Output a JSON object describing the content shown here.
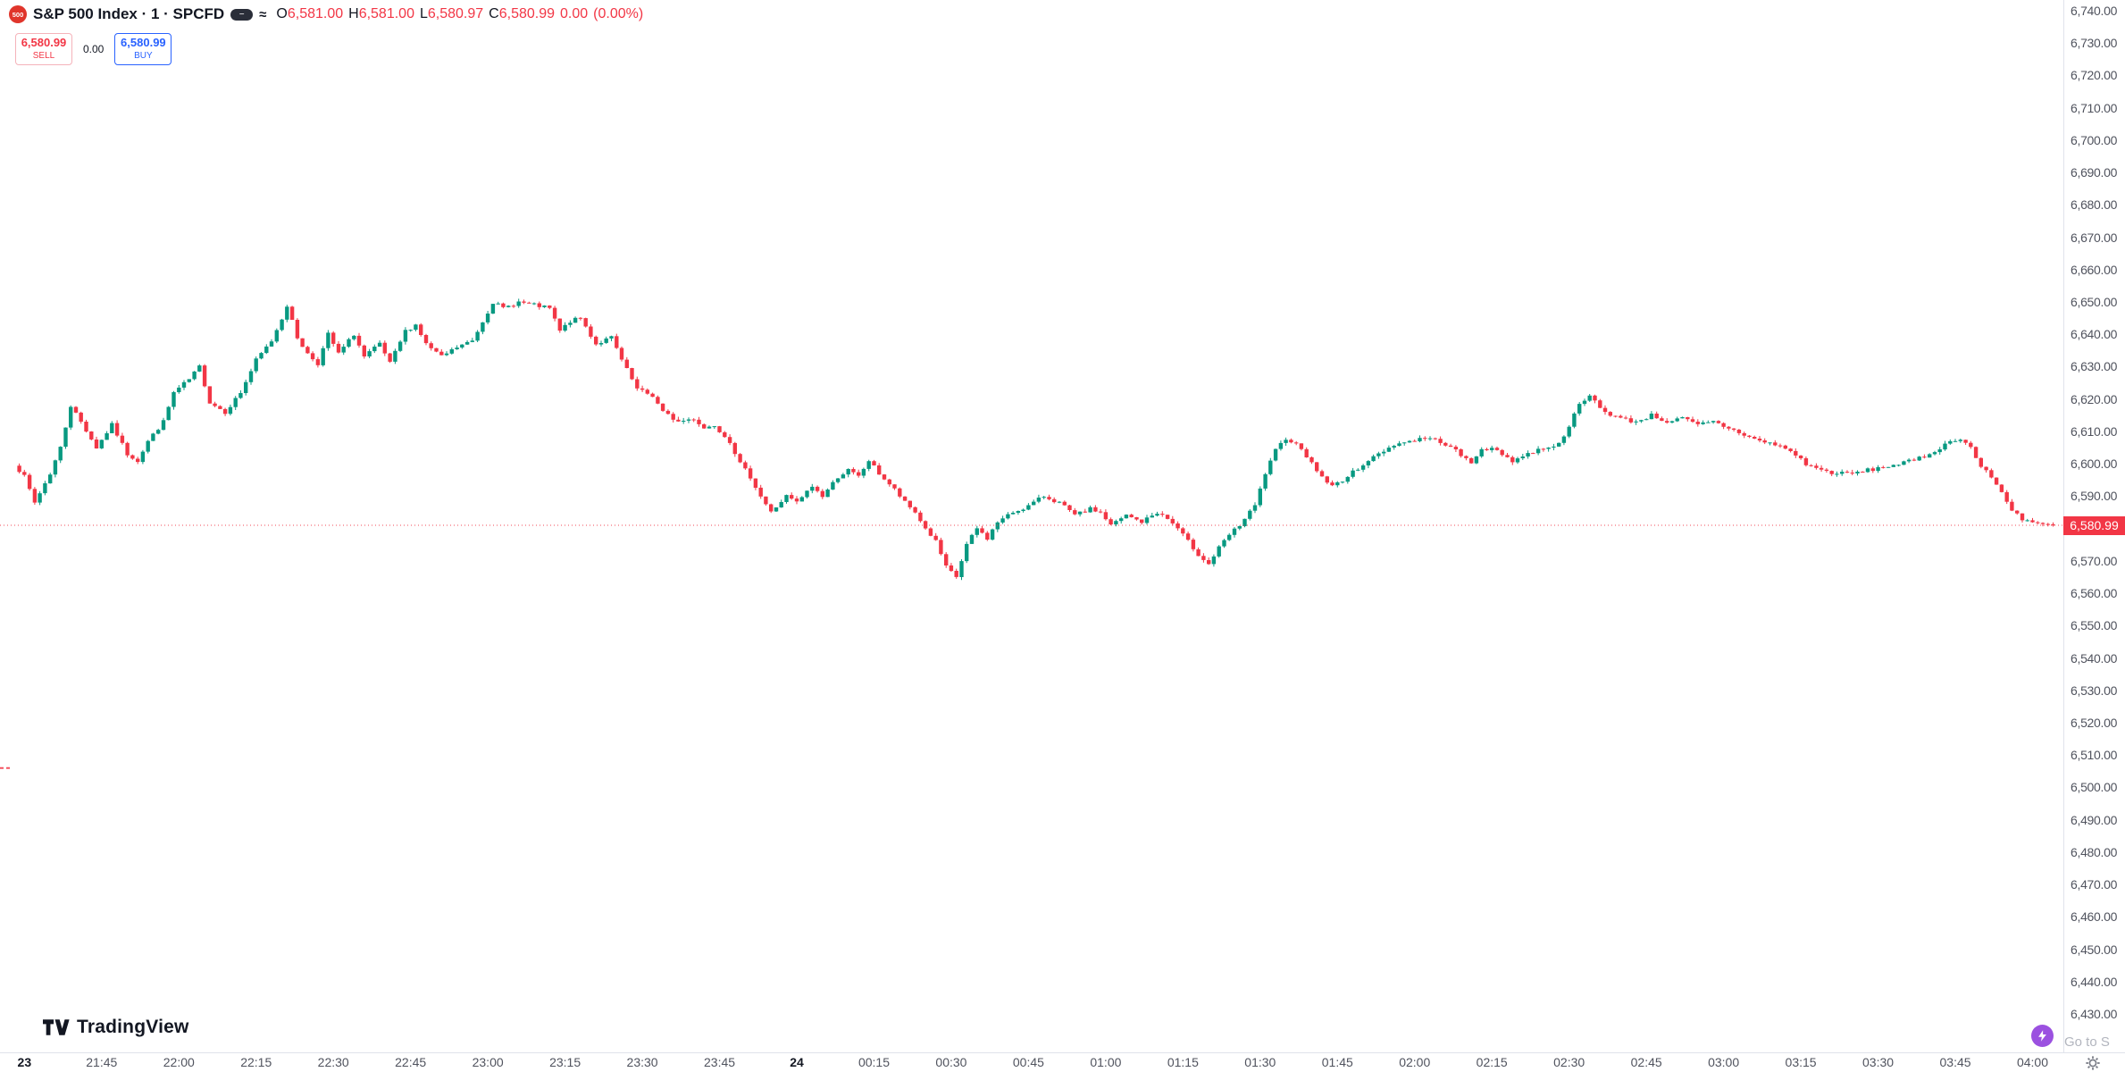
{
  "theme": {
    "up": "#089981",
    "down": "#F23645",
    "buy": "#2962FF",
    "sell": "#F23645",
    "axis_text": "#50535e",
    "logo_red": "#e0352b",
    "lightning_purple": "#9b51e0",
    "muted_text": "#b2b5be",
    "separator": "#e0e3eb"
  },
  "header": {
    "logo_text": "500",
    "title": "S&P 500 Index · 1 · SPCFD",
    "pill_icon_glyph": "−",
    "approx_icon_glyph": "≈",
    "ohlc": {
      "o_label": "O",
      "o_value": "6,581.00",
      "h_label": "H",
      "h_value": "6,581.00",
      "l_label": "L",
      "l_value": "6,580.97",
      "c_label": "C",
      "c_value": "6,580.99",
      "change": "0.00",
      "change_pct": "(0.00%)"
    }
  },
  "trade_panel": {
    "sell_price": "6,580.99",
    "sell_label": "SELL",
    "spread": "0.00",
    "buy_price": "6,580.99",
    "buy_label": "BUY"
  },
  "footer": {
    "brand": "TradingView",
    "goto_hint": "Go to S"
  },
  "chart_data": {
    "type": "candlestick",
    "title": "S&P 500 Index",
    "interval": "1",
    "exchange": "SPCFD",
    "up_color": "#089981",
    "down_color": "#F23645",
    "open": 6581.0,
    "high": 6581.0,
    "low": 6580.97,
    "close": 6580.99,
    "current_price": 6580.99,
    "current_price_label": "6,580.99",
    "left_edge_mark_price": 6506,
    "price_axis": {
      "min": 6430,
      "max": 6740,
      "step": 10,
      "tick_labels": [
        "6,740.00",
        "6,730.00",
        "6,720.00",
        "6,710.00",
        "6,700.00",
        "6,690.00",
        "6,680.00",
        "6,670.00",
        "6,660.00",
        "6,650.00",
        "6,640.00",
        "6,630.00",
        "6,620.00",
        "6,610.00",
        "6,600.00",
        "6,590.00",
        "6,580.00",
        "6,570.00",
        "6,560.00",
        "6,550.00",
        "6,540.00",
        "6,530.00",
        "6,520.00",
        "6,510.00",
        "6,500.00",
        "6,490.00",
        "6,480.00",
        "6,470.00",
        "6,460.00",
        "6,450.00",
        "6,440.00",
        "6,430.00"
      ]
    },
    "time_axis": {
      "start_time": "21:29",
      "end_time": "04:05",
      "labels": [
        {
          "t": 1,
          "label": "23",
          "bold": true
        },
        {
          "t": 16,
          "label": "21:45",
          "bold": false
        },
        {
          "t": 31,
          "label": "22:00",
          "bold": false
        },
        {
          "t": 46,
          "label": "22:15",
          "bold": false
        },
        {
          "t": 61,
          "label": "22:30",
          "bold": false
        },
        {
          "t": 76,
          "label": "22:45",
          "bold": false
        },
        {
          "t": 91,
          "label": "23:00",
          "bold": false
        },
        {
          "t": 106,
          "label": "23:15",
          "bold": false
        },
        {
          "t": 121,
          "label": "23:30",
          "bold": false
        },
        {
          "t": 136,
          "label": "23:45",
          "bold": false
        },
        {
          "t": 151,
          "label": "24",
          "bold": true
        },
        {
          "t": 166,
          "label": "00:15",
          "bold": false
        },
        {
          "t": 181,
          "label": "00:30",
          "bold": false
        },
        {
          "t": 196,
          "label": "00:45",
          "bold": false
        },
        {
          "t": 211,
          "label": "01:00",
          "bold": false
        },
        {
          "t": 226,
          "label": "01:15",
          "bold": false
        },
        {
          "t": 241,
          "label": "01:30",
          "bold": false
        },
        {
          "t": 256,
          "label": "01:45",
          "bold": false
        },
        {
          "t": 271,
          "label": "02:00",
          "bold": false
        },
        {
          "t": 286,
          "label": "02:15",
          "bold": false
        },
        {
          "t": 301,
          "label": "02:30",
          "bold": false
        },
        {
          "t": 316,
          "label": "02:45",
          "bold": false
        },
        {
          "t": 331,
          "label": "03:00",
          "bold": false
        },
        {
          "t": 346,
          "label": "03:15",
          "bold": false
        },
        {
          "t": 361,
          "label": "03:30",
          "bold": false
        },
        {
          "t": 376,
          "label": "03:45",
          "bold": false
        },
        {
          "t": 391,
          "label": "04:00",
          "bold": false
        }
      ]
    },
    "price_path_anchors": [
      [
        0,
        6600
      ],
      [
        2,
        6596
      ],
      [
        4,
        6588
      ],
      [
        7,
        6597
      ],
      [
        9,
        6605
      ],
      [
        11,
        6618
      ],
      [
        13,
        6613
      ],
      [
        16,
        6605
      ],
      [
        19,
        6612
      ],
      [
        22,
        6603
      ],
      [
        24,
        6601
      ],
      [
        26,
        6607
      ],
      [
        29,
        6613
      ],
      [
        31,
        6622
      ],
      [
        34,
        6626
      ],
      [
        36,
        6630
      ],
      [
        38,
        6619
      ],
      [
        41,
        6616
      ],
      [
        44,
        6622
      ],
      [
        47,
        6632
      ],
      [
        50,
        6638
      ],
      [
        52,
        6645
      ],
      [
        53,
        6649
      ],
      [
        55,
        6639
      ],
      [
        57,
        6634
      ],
      [
        59,
        6631
      ],
      [
        61,
        6640
      ],
      [
        63,
        6634
      ],
      [
        66,
        6640
      ],
      [
        68,
        6633
      ],
      [
        71,
        6637
      ],
      [
        73,
        6631
      ],
      [
        76,
        6641
      ],
      [
        78,
        6643
      ],
      [
        80,
        6637
      ],
      [
        83,
        6633
      ],
      [
        86,
        6636
      ],
      [
        89,
        6638
      ],
      [
        91,
        6644
      ],
      [
        93,
        6650
      ],
      [
        95,
        6648
      ],
      [
        98,
        6650
      ],
      [
        101,
        6649
      ],
      [
        104,
        6648
      ],
      [
        106,
        6641
      ],
      [
        108,
        6644
      ],
      [
        110,
        6645
      ],
      [
        113,
        6637
      ],
      [
        116,
        6639
      ],
      [
        118,
        6632
      ],
      [
        121,
        6623
      ],
      [
        124,
        6621
      ],
      [
        126,
        6616
      ],
      [
        129,
        6613
      ],
      [
        132,
        6614
      ],
      [
        134,
        6611
      ],
      [
        136,
        6612
      ],
      [
        139,
        6607
      ],
      [
        141,
        6600
      ],
      [
        143,
        6596
      ],
      [
        145,
        6590
      ],
      [
        147,
        6585
      ],
      [
        150,
        6590
      ],
      [
        152,
        6588
      ],
      [
        155,
        6593
      ],
      [
        157,
        6590
      ],
      [
        160,
        6596
      ],
      [
        162,
        6598
      ],
      [
        164,
        6596
      ],
      [
        166,
        6601
      ],
      [
        168,
        6597
      ],
      [
        171,
        6592
      ],
      [
        173,
        6588
      ],
      [
        175,
        6585
      ],
      [
        177,
        6580
      ],
      [
        179,
        6576
      ],
      [
        181,
        6568
      ],
      [
        183,
        6565
      ],
      [
        185,
        6575
      ],
      [
        187,
        6580
      ],
      [
        189,
        6577
      ],
      [
        191,
        6582
      ],
      [
        194,
        6585
      ],
      [
        197,
        6587
      ],
      [
        200,
        6590
      ],
      [
        203,
        6588
      ],
      [
        206,
        6584
      ],
      [
        209,
        6586
      ],
      [
        211,
        6585
      ],
      [
        213,
        6581
      ],
      [
        216,
        6584
      ],
      [
        219,
        6582
      ],
      [
        222,
        6585
      ],
      [
        224,
        6583
      ],
      [
        226,
        6580
      ],
      [
        228,
        6576
      ],
      [
        230,
        6572
      ],
      [
        232,
        6569
      ],
      [
        234,
        6574
      ],
      [
        236,
        6578
      ],
      [
        238,
        6581
      ],
      [
        241,
        6587
      ],
      [
        243,
        6597
      ],
      [
        245,
        6604
      ],
      [
        247,
        6608
      ],
      [
        250,
        6605
      ],
      [
        252,
        6600
      ],
      [
        254,
        6596
      ],
      [
        256,
        6593
      ],
      [
        259,
        6596
      ],
      [
        262,
        6600
      ],
      [
        265,
        6603
      ],
      [
        268,
        6606
      ],
      [
        271,
        6607
      ],
      [
        274,
        6608
      ],
      [
        277,
        6607
      ],
      [
        280,
        6604
      ],
      [
        283,
        6600
      ],
      [
        285,
        6605
      ],
      [
        288,
        6604
      ],
      [
        291,
        6601
      ],
      [
        294,
        6603
      ],
      [
        297,
        6605
      ],
      [
        300,
        6606
      ],
      [
        302,
        6612
      ],
      [
        304,
        6618
      ],
      [
        306,
        6621
      ],
      [
        309,
        6616
      ],
      [
        312,
        6614
      ],
      [
        315,
        6613
      ],
      [
        318,
        6615
      ],
      [
        321,
        6613
      ],
      [
        324,
        6614
      ],
      [
        327,
        6612
      ],
      [
        330,
        6613
      ],
      [
        333,
        6611
      ],
      [
        336,
        6609
      ],
      [
        339,
        6607
      ],
      [
        342,
        6606
      ],
      [
        345,
        6604
      ],
      [
        348,
        6600
      ],
      [
        351,
        6598
      ],
      [
        354,
        6597
      ],
      [
        357,
        6597
      ],
      [
        360,
        6598
      ],
      [
        363,
        6599
      ],
      [
        366,
        6600
      ],
      [
        369,
        6601
      ],
      [
        372,
        6603
      ],
      [
        375,
        6606
      ],
      [
        378,
        6608
      ],
      [
        380,
        6605
      ],
      [
        382,
        6599
      ],
      [
        384,
        6596
      ],
      [
        386,
        6591
      ],
      [
        388,
        6586
      ],
      [
        390,
        6583
      ],
      [
        392,
        6582
      ],
      [
        394,
        6581
      ],
      [
        396,
        6580.99
      ]
    ]
  }
}
